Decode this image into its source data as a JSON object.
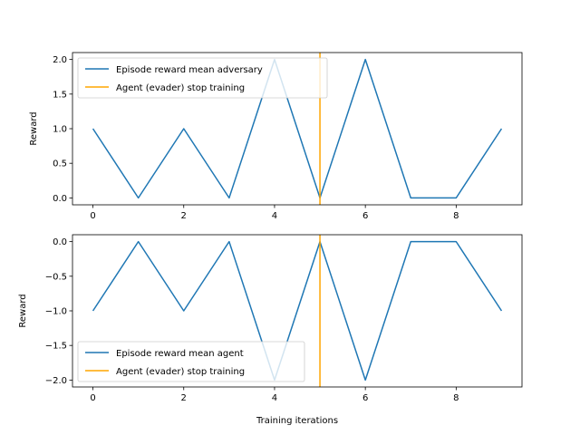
{
  "chart_data": [
    {
      "type": "line",
      "xlabel": "",
      "ylabel": "Reward",
      "xlim": [
        -0.45,
        9.45
      ],
      "ylim": [
        -0.1,
        2.1
      ],
      "xticks": [
        0,
        2,
        4,
        6,
        8
      ],
      "yticks": [
        0.0,
        0.5,
        1.0,
        1.5,
        2.0
      ],
      "ytick_labels": [
        "0.0",
        "0.5",
        "1.0",
        "1.5",
        "2.0"
      ],
      "xtick_labels": [
        "0",
        "2",
        "4",
        "6",
        "8"
      ],
      "series": [
        {
          "name": "Episode reward mean adversary",
          "color": "#1f77b4",
          "x": [
            0,
            1,
            2,
            3,
            4,
            5,
            6,
            7,
            8,
            9
          ],
          "values": [
            1,
            0,
            1,
            0,
            2,
            0,
            2,
            0,
            0,
            1
          ]
        }
      ],
      "vline": {
        "name": "Agent (evader) stop training",
        "x": 5,
        "color": "#ffa500"
      },
      "legend": {
        "position": "upper-left"
      },
      "grid": false
    },
    {
      "type": "line",
      "xlabel": "Training iterations",
      "ylabel": "Reward",
      "xlim": [
        -0.45,
        9.45
      ],
      "ylim": [
        -2.1,
        0.1
      ],
      "xticks": [
        0,
        2,
        4,
        6,
        8
      ],
      "yticks": [
        -2.0,
        -1.5,
        -1.0,
        -0.5,
        0.0
      ],
      "ytick_labels": [
        "−2.0",
        "−1.5",
        "−1.0",
        "−0.5",
        "0.0"
      ],
      "xtick_labels": [
        "0",
        "2",
        "4",
        "6",
        "8"
      ],
      "series": [
        {
          "name": "Episode reward mean agent",
          "color": "#1f77b4",
          "x": [
            0,
            1,
            2,
            3,
            4,
            5,
            6,
            7,
            8,
            9
          ],
          "values": [
            -1,
            0,
            -1,
            0,
            -2,
            0,
            -2,
            0,
            0,
            -1
          ]
        }
      ],
      "vline": {
        "name": "Agent (evader) stop training",
        "x": 5,
        "color": "#ffa500"
      },
      "legend": {
        "position": "lower-left"
      },
      "grid": false
    }
  ]
}
